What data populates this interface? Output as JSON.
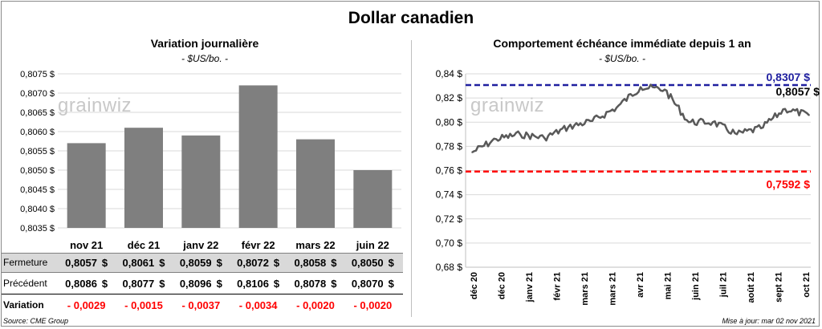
{
  "title": "Dollar canadien",
  "watermark": "grainwiz",
  "left_panel": {
    "title": "Variation  journalière",
    "unit": "- $US/bo. -"
  },
  "right_panel": {
    "title": "Comportement échéance immédiate depuis 1 an",
    "unit": "- $US/bo. -"
  },
  "table": {
    "rows": [
      {
        "label": "Fermeture",
        "values": [
          "0,8057",
          "0,8061",
          "0,8059",
          "0,8072",
          "0,8058",
          "0,8050"
        ],
        "suffix": "$"
      },
      {
        "label": "Précédent",
        "values": [
          "0,8086",
          "0,8077",
          "0,8096",
          "0,8106",
          "0,8078",
          "0,8070"
        ],
        "suffix": "$"
      },
      {
        "label": "Variation",
        "values": [
          "- 0,0029",
          "- 0,0015",
          "- 0,0037",
          "- 0,0034",
          "- 0,0020",
          "- 0,0020"
        ],
        "suffix": ""
      }
    ]
  },
  "colors": {
    "bar": "#7f7f7f",
    "line": "#595959",
    "high": "#1f1f9f",
    "low": "#ff0000",
    "negative": "#ff0000"
  },
  "footer": {
    "source": "Source: CME Group",
    "updated": "Mise à jour: mar 02 nov 2021"
  },
  "chart_data": [
    {
      "type": "bar",
      "categories": [
        "nov 21",
        "déc 21",
        "janv 22",
        "févr 22",
        "mars 22",
        "juin 22"
      ],
      "values": [
        0.8057,
        0.8061,
        0.8059,
        0.8072,
        0.8058,
        0.805
      ],
      "ylim": [
        0.8035,
        0.8075
      ],
      "yticks": [
        "0,8035 $",
        "0,8040 $",
        "0,8045 $",
        "0,8050 $",
        "0,8055 $",
        "0,8060 $",
        "0,8065 $",
        "0,8070 $",
        "0,8075 $"
      ],
      "grid": true
    },
    {
      "type": "line",
      "x": [
        "déc 20",
        "déc 20",
        "janv 21",
        "févr 21",
        "mars 21",
        "mars 21",
        "avr 21",
        "mai 21",
        "mai 21",
        "juin 21",
        "juil 21",
        "août 21",
        "sept 21",
        "oct 21",
        "nov 21"
      ],
      "y": [
        0.775,
        0.786,
        0.79,
        0.787,
        0.796,
        0.801,
        0.812,
        0.829,
        0.827,
        0.8,
        0.8,
        0.79,
        0.795,
        0.811,
        0.8057
      ],
      "xticks": [
        "déc 20",
        "déc 20",
        "janv 21",
        "févr 21",
        "mars 21",
        "mars 21",
        "avr 21",
        "mai 21",
        "juin 21",
        "juil 21",
        "août 21",
        "sept 21",
        "oct 21"
      ],
      "ylim": [
        0.68,
        0.84
      ],
      "yticks": [
        "0,68 $",
        "0,70 $",
        "0,72 $",
        "0,74 $",
        "0,76 $",
        "0,78 $",
        "0,80 $",
        "0,82 $",
        "0,84 $"
      ],
      "high": {
        "value": 0.8307,
        "label": "0,8307  $"
      },
      "low": {
        "value": 0.7592,
        "label": "0,7592  $"
      },
      "last": {
        "value": 0.8057,
        "label": "0,8057 $"
      },
      "grid": true
    }
  ]
}
